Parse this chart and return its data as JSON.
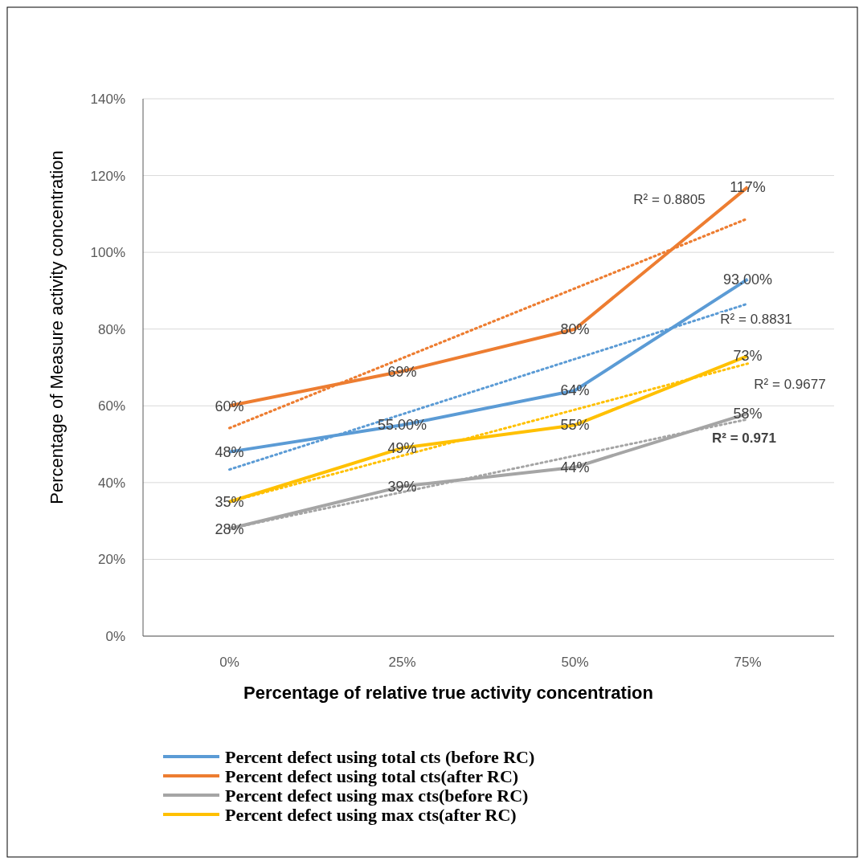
{
  "chart_data": {
    "type": "line",
    "xlabel": "Percentage of relative true activity concentration",
    "ylabel": "Percentage of Measure activity concentration",
    "categories": [
      "0%",
      "25%",
      "50%",
      "75%"
    ],
    "ylim": [
      0,
      140
    ],
    "yticks": [
      {
        "value": 0,
        "label": "0%"
      },
      {
        "value": 20,
        "label": "20%"
      },
      {
        "value": 40,
        "label": "40%"
      },
      {
        "value": 60,
        "label": "60%"
      },
      {
        "value": 80,
        "label": "80%"
      },
      {
        "value": 100,
        "label": "100%"
      },
      {
        "value": 120,
        "label": "120%"
      },
      {
        "value": 140,
        "label": "140%"
      }
    ],
    "grid": "y",
    "legend": "bottom",
    "marker": "none",
    "series": [
      {
        "name": "Percent defect using total cts (before RC)",
        "color": "#5b9bd5",
        "values": [
          48,
          55,
          64,
          93
        ],
        "value_labels": [
          "48%",
          "55.00%",
          "64%",
          "93.00%"
        ]
      },
      {
        "name": "Percent defect using total cts(after RC)",
        "color": "#ed7d31",
        "values": [
          60,
          69,
          80,
          117
        ],
        "value_labels": [
          "60%",
          "69%",
          "80%",
          "117%"
        ]
      },
      {
        "name": "Percent defect using max cts(before RC)",
        "color": "#a5a5a5",
        "values": [
          28,
          39,
          44,
          58
        ],
        "value_labels": [
          "28%",
          "39%",
          "44%",
          "58%"
        ]
      },
      {
        "name": "Percent defect using max cts(after RC)",
        "color": "#ffc000",
        "values": [
          35,
          49,
          55,
          73
        ],
        "value_labels": [
          "35%",
          "49%",
          "55%",
          "73%"
        ]
      },
      {
        "type": "line",
        "color": "#5b9bd5",
        "x": [
          "0%",
          "75%"
        ],
        "values": [
          43.4,
          86.6
        ],
        "line_style": "dotted"
      },
      {
        "type": "line",
        "color": "#ed7d31",
        "x": [
          "0%",
          "75%"
        ],
        "values": [
          54.2,
          108.8
        ],
        "line_style": "dotted"
      },
      {
        "type": "line",
        "color": "#a5a5a5",
        "x": [
          "0%",
          "75%"
        ],
        "values": [
          28,
          56.5
        ],
        "line_style": "dotted"
      },
      {
        "type": "line",
        "color": "#ffc000",
        "x": [
          "0%",
          "75%"
        ],
        "values": [
          35,
          71
        ],
        "line_style": "dotted"
      }
    ],
    "annotations": [
      "R² = 0.8805",
      "R² = 0.8831",
      "R² = 0.9677",
      "R² = 0.971"
    ]
  }
}
